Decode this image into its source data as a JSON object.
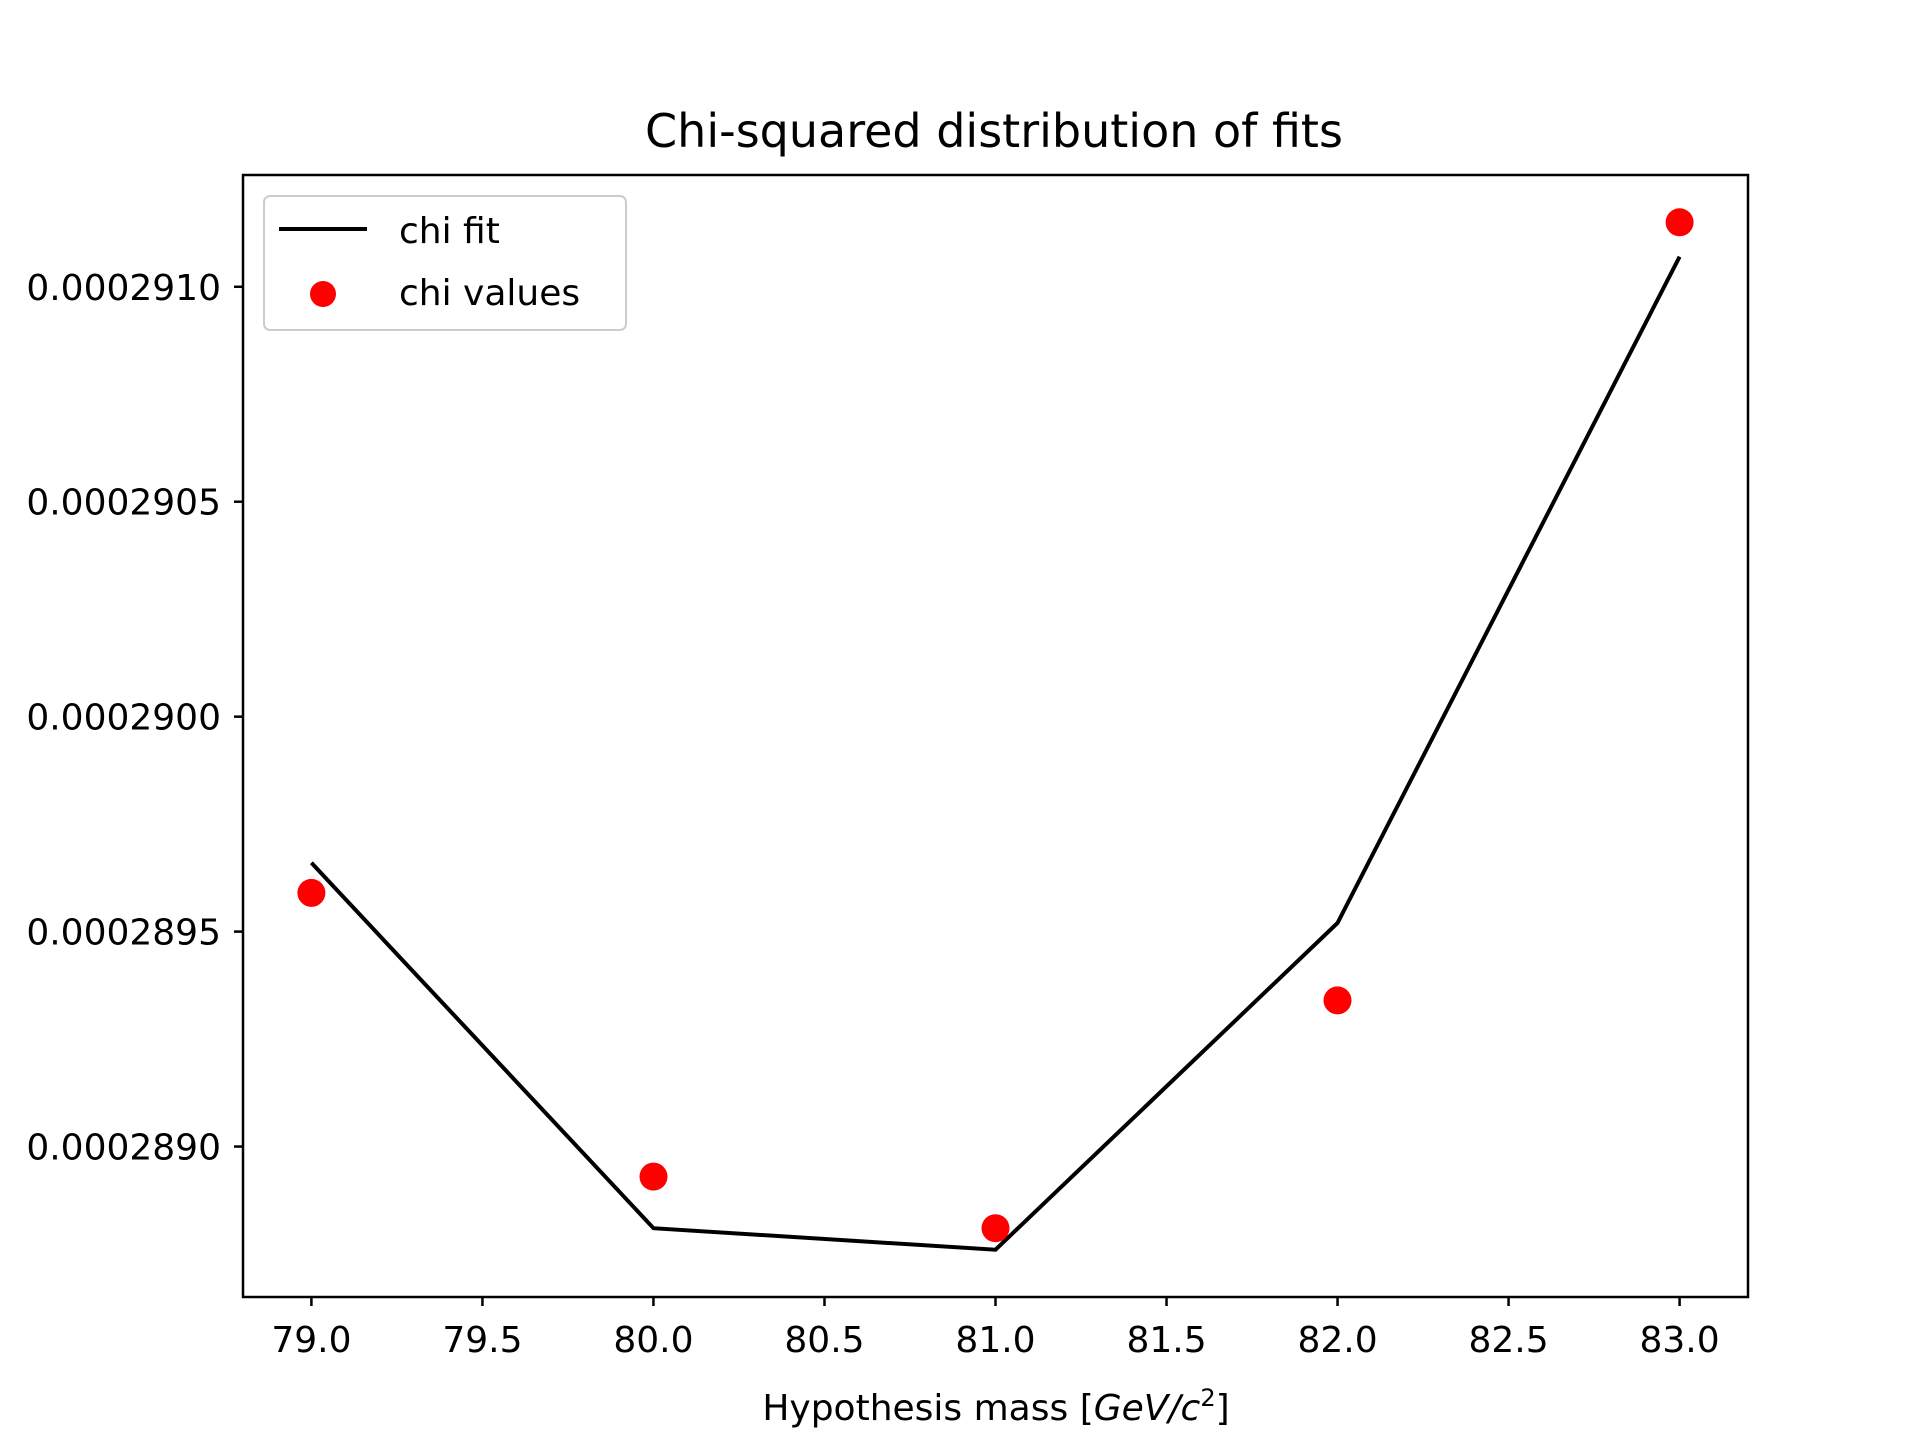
{
  "chart_data": {
    "type": "line",
    "title": "Chi-squared distribution of fits",
    "xlabel_text": "Hypothesis mass [",
    "xlabel_unit_base": "GeV/c",
    "xlabel_unit_sup": "2",
    "xlabel_close": "]",
    "ylabel": "",
    "xlim": [
      78.8,
      83.2
    ],
    "ylim": [
      0.00028865,
      0.00029126
    ],
    "x_ticks": [
      79.0,
      79.5,
      80.0,
      80.5,
      81.0,
      81.5,
      82.0,
      82.5,
      83.0
    ],
    "x_tick_labels": [
      "79.0",
      "79.5",
      "80.0",
      "80.5",
      "81.0",
      "81.5",
      "82.0",
      "82.5",
      "83.0"
    ],
    "y_ticks": [
      0.000289,
      0.0002895,
      0.00029,
      0.0002905,
      0.000291
    ],
    "y_tick_labels": [
      "0.0002890",
      "0.0002895",
      "0.0002900",
      "0.0002905",
      "0.0002910"
    ],
    "series": [
      {
        "name": "chi fit",
        "kind": "line",
        "color": "#000000",
        "x": [
          79.0,
          80.0,
          81.0,
          82.0,
          83.0
        ],
        "y": [
          0.00028966,
          0.00028881,
          0.00028876,
          0.00028952,
          0.00029107
        ]
      },
      {
        "name": "chi values",
        "kind": "scatter",
        "color": "#ff0000",
        "x": [
          79.0,
          80.0,
          81.0,
          82.0,
          83.0
        ],
        "y": [
          0.00028959,
          0.00028893,
          0.00028881,
          0.00028934,
          0.00029115
        ]
      }
    ],
    "legend": {
      "position": "top-left",
      "entries": [
        "chi fit",
        "chi values"
      ]
    },
    "grid": false
  }
}
